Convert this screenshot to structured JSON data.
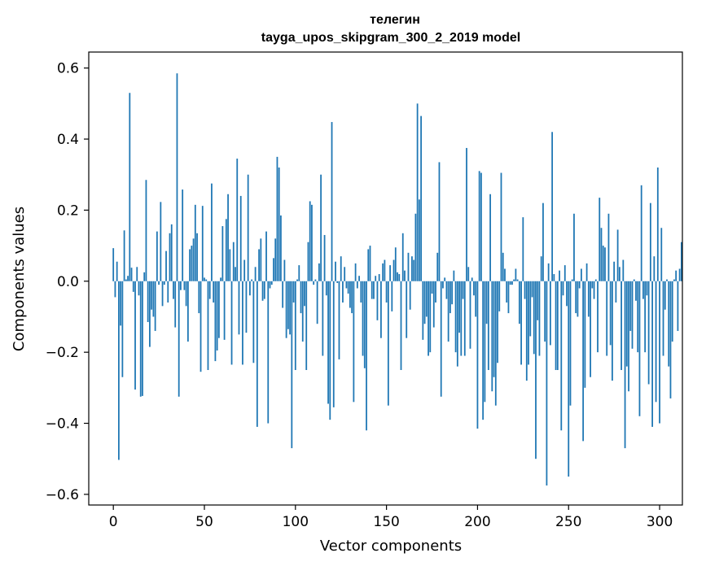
{
  "chart_data": {
    "type": "bar",
    "title_line1": "телегин",
    "title_line2": "tayga_upos_skipgram_300_2_2019 model",
    "xlabel": "Vector components",
    "ylabel": "Components values",
    "xlim": [
      -13.5,
      312.5
    ],
    "ylim": [
      -0.63,
      0.645
    ],
    "x_ticks": [
      0,
      50,
      100,
      150,
      200,
      250,
      300
    ],
    "x_tick_labels": [
      "0",
      "50",
      "100",
      "150",
      "200",
      "250",
      "300"
    ],
    "y_ticks": [
      -0.6,
      -0.4,
      -0.2,
      0.0,
      0.2,
      0.4,
      0.6
    ],
    "y_tick_labels": [
      "−0.6",
      "−0.4",
      "−0.2",
      "0.0",
      "0.2",
      "0.4",
      "0.6"
    ],
    "bar_color": "#1f77b4",
    "values": [
      0.093,
      -0.045,
      0.055,
      -0.503,
      -0.125,
      -0.27,
      0.143,
      0.005,
      0.015,
      0.53,
      0.038,
      -0.03,
      -0.305,
      0.04,
      -0.04,
      -0.325,
      -0.323,
      0.025,
      0.285,
      -0.115,
      -0.185,
      -0.08,
      -0.1,
      -0.14,
      0.14,
      -0.01,
      0.223,
      -0.07,
      -0.01,
      0.085,
      -0.06,
      0.135,
      0.16,
      -0.05,
      -0.13,
      0.585,
      -0.325,
      -0.025,
      0.258,
      -0.025,
      -0.07,
      -0.17,
      0.09,
      0.1,
      0.12,
      0.215,
      0.135,
      -0.09,
      -0.255,
      0.212,
      0.01,
      0.005,
      -0.25,
      -0.05,
      0.275,
      -0.06,
      -0.225,
      -0.195,
      -0.16,
      0.01,
      0.155,
      -0.165,
      0.175,
      0.245,
      0.09,
      -0.235,
      0.11,
      0.04,
      0.345,
      -0.15,
      0.24,
      -0.235,
      0.06,
      -0.145,
      0.3,
      -0.04,
      0.005,
      -0.23,
      0.04,
      -0.41,
      0.09,
      0.12,
      -0.055,
      -0.05,
      0.14,
      -0.4,
      -0.02,
      -0.01,
      0.065,
      0.12,
      0.35,
      0.32,
      0.185,
      -0.075,
      0.06,
      -0.16,
      -0.135,
      -0.15,
      -0.47,
      -0.06,
      -0.25,
      0.005,
      0.045,
      -0.09,
      -0.17,
      -0.07,
      -0.25,
      0.11,
      0.225,
      0.215,
      -0.01,
      0.005,
      -0.12,
      0.05,
      0.3,
      -0.21,
      0.13,
      -0.04,
      -0.345,
      -0.39,
      0.448,
      -0.355,
      0.055,
      -0.005,
      -0.22,
      0.07,
      -0.06,
      0.04,
      -0.02,
      -0.035,
      -0.075,
      -0.09,
      -0.34,
      0.05,
      -0.02,
      0.015,
      -0.06,
      -0.21,
      -0.245,
      -0.42,
      0.09,
      0.1,
      -0.05,
      -0.05,
      0.015,
      -0.11,
      0.02,
      -0.16,
      0.05,
      0.06,
      -0.06,
      -0.35,
      0.045,
      -0.085,
      0.06,
      0.095,
      0.025,
      0.02,
      -0.25,
      0.135,
      0.03,
      -0.16,
      0.08,
      -0.08,
      0.07,
      0.06,
      0.19,
      0.5,
      0.23,
      0.465,
      -0.165,
      -0.12,
      -0.1,
      -0.21,
      -0.2,
      -0.035,
      -0.13,
      -0.06,
      0.08,
      0.335,
      -0.325,
      -0.02,
      0.01,
      -0.05,
      -0.17,
      -0.09,
      -0.065,
      0.03,
      -0.2,
      -0.24,
      -0.145,
      -0.21,
      -0.05,
      -0.21,
      0.375,
      0.04,
      -0.19,
      0.01,
      -0.04,
      -0.1,
      -0.415,
      0.31,
      0.305,
      -0.39,
      -0.34,
      -0.12,
      -0.25,
      0.245,
      -0.31,
      -0.27,
      -0.35,
      -0.23,
      -0.085,
      0.305,
      0.08,
      0.035,
      -0.06,
      -0.09,
      -0.01,
      -0.01,
      0.005,
      0.035,
      0.005,
      -0.12,
      -0.235,
      0.18,
      -0.05,
      -0.28,
      -0.235,
      -0.155,
      -0.045,
      -0.205,
      -0.5,
      -0.11,
      -0.21,
      0.07,
      0.22,
      -0.17,
      -0.575,
      0.05,
      -0.18,
      0.42,
      0.02,
      -0.25,
      -0.25,
      0.03,
      -0.42,
      -0.04,
      0.045,
      -0.07,
      -0.55,
      -0.35,
      0.005,
      0.19,
      -0.09,
      -0.1,
      -0.02,
      0.035,
      -0.45,
      -0.3,
      0.05,
      -0.1,
      -0.27,
      -0.02,
      -0.05,
      0.005,
      -0.2,
      0.235,
      0.15,
      0.1,
      0.095,
      -0.21,
      0.19,
      -0.18,
      -0.28,
      0.055,
      -0.06,
      0.145,
      0.04,
      -0.25,
      0.06,
      -0.47,
      -0.24,
      -0.31,
      -0.14,
      -0.19,
      0.005,
      -0.055,
      -0.2,
      -0.38,
      0.27,
      -0.05,
      -0.2,
      -0.04,
      -0.29,
      0.22,
      -0.41,
      0.07,
      -0.34,
      0.32,
      -0.4,
      0.15,
      -0.21,
      -0.08,
      0.005,
      -0.24,
      -0.33,
      -0.17,
      0.005,
      0.03,
      -0.14,
      0.035,
      0.11
    ]
  }
}
